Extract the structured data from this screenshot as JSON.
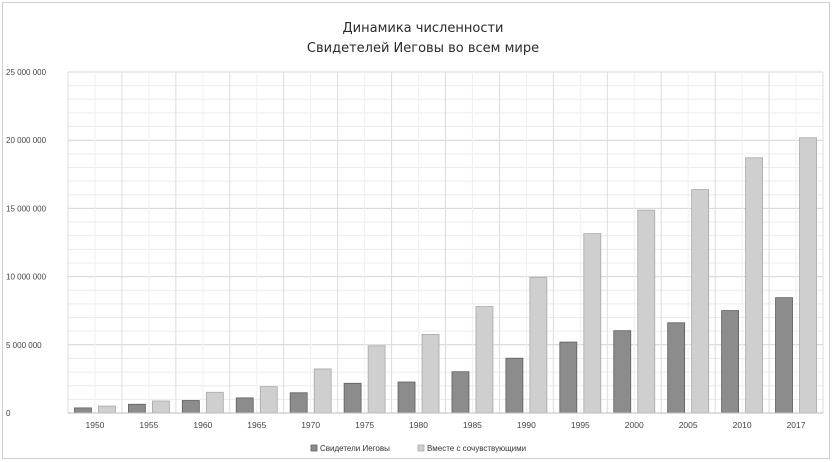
{
  "chart_data": {
    "type": "bar",
    "title_lines": [
      "Динамика численности",
      "Свидетелей Иеговы во всем мире"
    ],
    "xlabel": "",
    "ylabel": "",
    "ylim": [
      0,
      25000000
    ],
    "yticks": [
      0,
      5000000,
      10000000,
      15000000,
      20000000,
      25000000
    ],
    "ytick_labels": [
      "0",
      "5 000 000",
      "10 000 000",
      "15 000 000",
      "20 000 000",
      "25 000 000"
    ],
    "categories": [
      "1950",
      "1955",
      "1960",
      "1965",
      "1970",
      "1975",
      "1980",
      "1985",
      "1990",
      "1995",
      "2000",
      "2005",
      "2010",
      "2017"
    ],
    "series": [
      {
        "name": "Свидетели Иеговы",
        "color": "#8c8c8c",
        "values": [
          374000,
          640000,
          916000,
          1109000,
          1484000,
          2180000,
          2272000,
          3025000,
          4017000,
          5200000,
          6035000,
          6614000,
          7509000,
          8457000
        ]
      },
      {
        "name": "Вместе с сочувствующими",
        "color": "#cfcfcf",
        "values": [
          510000,
          880000,
          1520000,
          1930000,
          3230000,
          4920000,
          5760000,
          7800000,
          9950000,
          13150000,
          14870000,
          16380000,
          18710000,
          20180000
        ]
      }
    ],
    "grid": true,
    "legend": "bottom"
  }
}
